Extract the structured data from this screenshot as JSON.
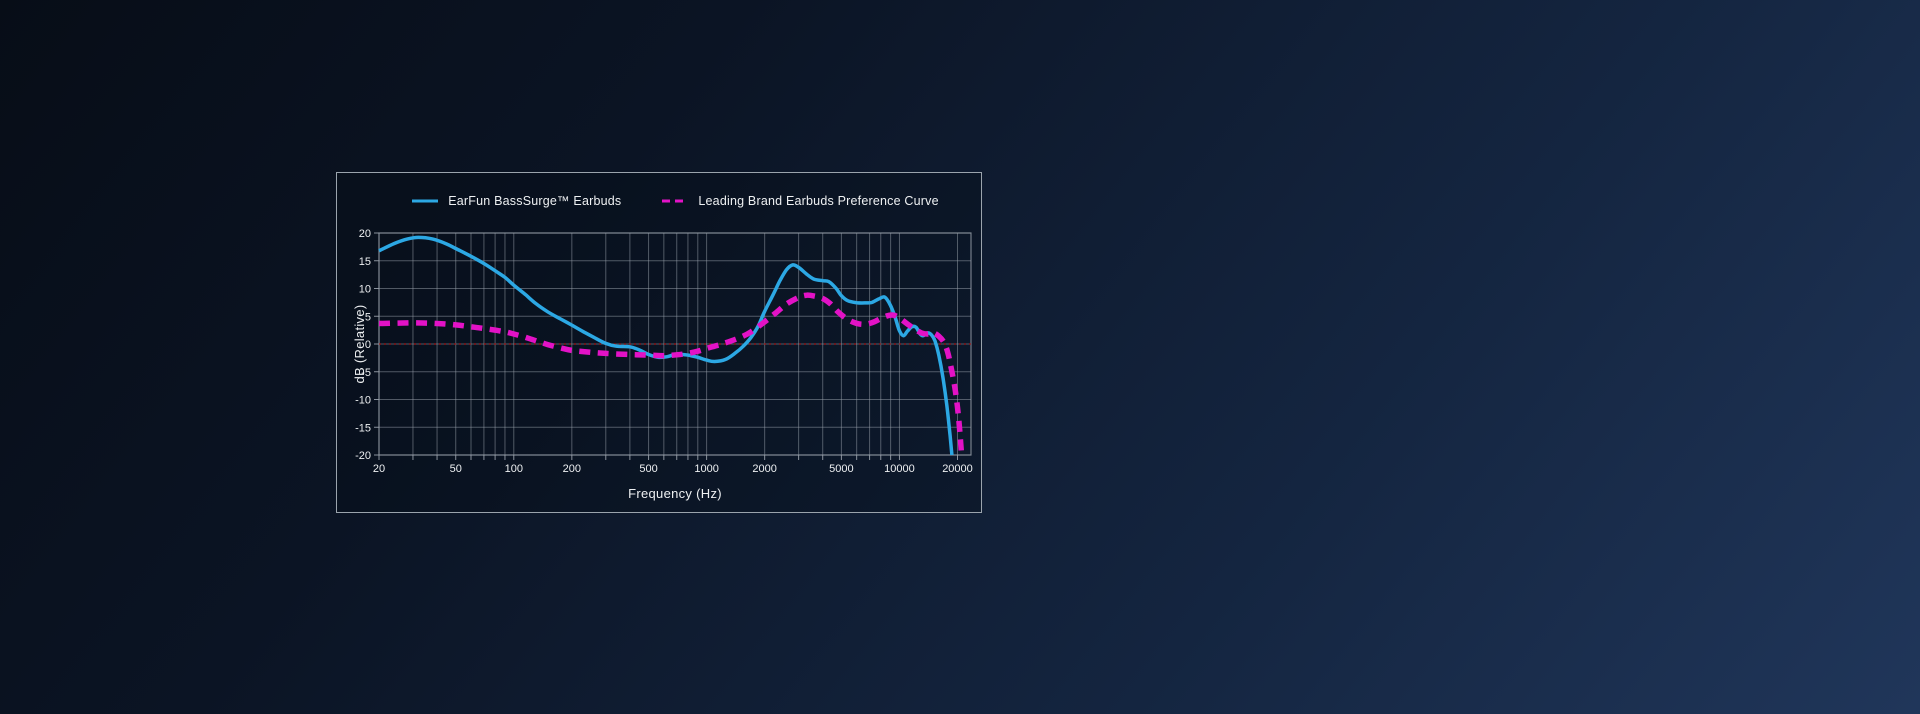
{
  "colors": {
    "accent_blue": "#2CA8E4",
    "accent_magenta": "#E312C6",
    "zero_line_red": "#A31A1A",
    "grid": "#99A1AB",
    "text": "#EEF0F2",
    "panel_border": "#9BA4AD"
  },
  "chart": {
    "legend": [
      {
        "label": "EarFun BassSurge™ Earbuds",
        "color": "#2CA8E4",
        "style": "solid"
      },
      {
        "label": "Leading Brand Earbuds Preference Curve",
        "color": "#E312C6",
        "style": "dashed"
      }
    ]
  },
  "chart_data": {
    "type": "line",
    "title": "",
    "xlabel": "Frequency (Hz)",
    "ylabel": "dB (Relative)",
    "x_scale": "log",
    "xlim": [
      20,
      23500
    ],
    "ylim": [
      -20,
      20
    ],
    "x_ticks": [
      20,
      50,
      100,
      200,
      500,
      1000,
      2000,
      5000,
      10000,
      20000
    ],
    "y_ticks": [
      20,
      15,
      10,
      5,
      0,
      -5,
      -10,
      -15,
      -20
    ],
    "grid": true,
    "legend_position": "top",
    "zero_line": {
      "y": 0,
      "color": "#A31A1A",
      "style": "dotted"
    },
    "series": [
      {
        "name": "EarFun BassSurge™ Earbuds",
        "color": "#2CA8E4",
        "line_style": "solid",
        "line_width": 3.5,
        "points": [
          [
            20,
            16.8
          ],
          [
            24,
            18.1
          ],
          [
            28,
            18.9
          ],
          [
            32,
            19.2
          ],
          [
            38,
            18.9
          ],
          [
            45,
            18.0
          ],
          [
            50,
            17.2
          ],
          [
            60,
            15.8
          ],
          [
            70,
            14.5
          ],
          [
            80,
            13.2
          ],
          [
            90,
            12.0
          ],
          [
            100,
            10.6
          ],
          [
            115,
            8.9
          ],
          [
            130,
            7.3
          ],
          [
            150,
            5.8
          ],
          [
            175,
            4.5
          ],
          [
            200,
            3.4
          ],
          [
            230,
            2.2
          ],
          [
            260,
            1.2
          ],
          [
            300,
            0.1
          ],
          [
            340,
            -0.4
          ],
          [
            400,
            -0.5
          ],
          [
            450,
            -1.1
          ],
          [
            500,
            -1.9
          ],
          [
            560,
            -2.4
          ],
          [
            620,
            -2.3
          ],
          [
            700,
            -1.85
          ],
          [
            800,
            -2.0
          ],
          [
            900,
            -2.4
          ],
          [
            1000,
            -2.9
          ],
          [
            1100,
            -3.15
          ],
          [
            1250,
            -2.8
          ],
          [
            1400,
            -1.7
          ],
          [
            1550,
            -0.4
          ],
          [
            1700,
            1.2
          ],
          [
            1850,
            3.2
          ],
          [
            2000,
            5.9
          ],
          [
            2200,
            8.7
          ],
          [
            2400,
            11.4
          ],
          [
            2600,
            13.4
          ],
          [
            2800,
            14.25
          ],
          [
            3000,
            13.8
          ],
          [
            3300,
            12.6
          ],
          [
            3600,
            11.7
          ],
          [
            4000,
            11.4
          ],
          [
            4300,
            11.25
          ],
          [
            4700,
            10.0
          ],
          [
            5000,
            8.7
          ],
          [
            5400,
            7.8
          ],
          [
            6000,
            7.45
          ],
          [
            6600,
            7.4
          ],
          [
            7200,
            7.5
          ],
          [
            7800,
            8.1
          ],
          [
            8400,
            8.45
          ],
          [
            9000,
            6.9
          ],
          [
            9500,
            4.8
          ],
          [
            10000,
            2.4
          ],
          [
            10500,
            1.5
          ],
          [
            11000,
            2.3
          ],
          [
            11600,
            3.1
          ],
          [
            12200,
            3.0
          ],
          [
            12800,
            1.8
          ],
          [
            13300,
            1.5
          ],
          [
            14000,
            2.0
          ],
          [
            14700,
            1.6
          ],
          [
            15300,
            0.5
          ],
          [
            16000,
            -2.0
          ],
          [
            16800,
            -6.0
          ],
          [
            17600,
            -11.0
          ],
          [
            18300,
            -16.5
          ],
          [
            18700,
            -20
          ]
        ]
      },
      {
        "name": "Leading Brand Earbuds Preference Curve",
        "color": "#E312C6",
        "line_style": "dashed",
        "line_width": 5.5,
        "points": [
          [
            20,
            3.7
          ],
          [
            30,
            3.8
          ],
          [
            40,
            3.7
          ],
          [
            50,
            3.45
          ],
          [
            60,
            3.1
          ],
          [
            70,
            2.8
          ],
          [
            80,
            2.5
          ],
          [
            90,
            2.2
          ],
          [
            100,
            1.8
          ],
          [
            115,
            1.2
          ],
          [
            130,
            0.6
          ],
          [
            150,
            -0.1
          ],
          [
            175,
            -0.7
          ],
          [
            200,
            -1.15
          ],
          [
            250,
            -1.5
          ],
          [
            300,
            -1.7
          ],
          [
            400,
            -1.9
          ],
          [
            500,
            -2.0
          ],
          [
            600,
            -2.1
          ],
          [
            700,
            -1.95
          ],
          [
            800,
            -1.7
          ],
          [
            900,
            -1.3
          ],
          [
            1000,
            -0.8
          ],
          [
            1150,
            -0.2
          ],
          [
            1300,
            0.4
          ],
          [
            1500,
            1.2
          ],
          [
            1700,
            2.2
          ],
          [
            2000,
            4.0
          ],
          [
            2300,
            5.7
          ],
          [
            2600,
            7.2
          ],
          [
            3000,
            8.4
          ],
          [
            3300,
            8.8
          ],
          [
            3600,
            8.65
          ],
          [
            4000,
            8.2
          ],
          [
            4400,
            7.2
          ],
          [
            4800,
            5.8
          ],
          [
            5200,
            4.8
          ],
          [
            5700,
            4.0
          ],
          [
            6200,
            3.6
          ],
          [
            6800,
            3.6
          ],
          [
            7400,
            4.0
          ],
          [
            8000,
            4.6
          ],
          [
            8700,
            5.1
          ],
          [
            9300,
            5.2
          ],
          [
            10000,
            4.7
          ],
          [
            11000,
            3.6
          ],
          [
            12000,
            2.7
          ],
          [
            13000,
            2.0
          ],
          [
            14000,
            1.8
          ],
          [
            15000,
            2.0
          ],
          [
            16000,
            1.4
          ],
          [
            17000,
            0.3
          ],
          [
            17800,
            -1.5
          ],
          [
            18600,
            -4.5
          ],
          [
            19500,
            -8.5
          ],
          [
            20300,
            -13.5
          ],
          [
            21000,
            -20
          ]
        ]
      }
    ]
  }
}
